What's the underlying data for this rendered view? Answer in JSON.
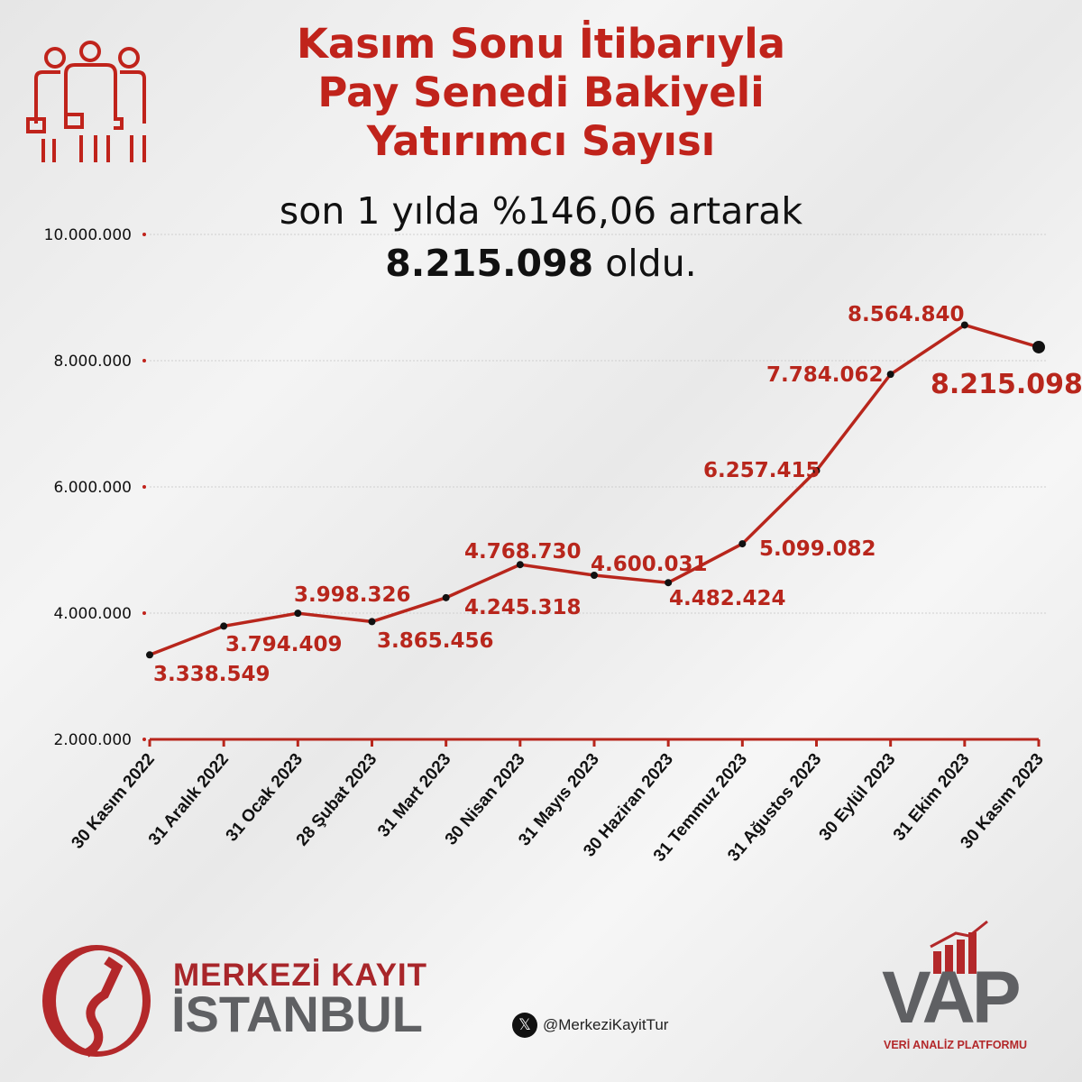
{
  "header": {
    "title_lines": [
      "Kasım Sonu İtibarıyla",
      "Pay Senedi Bakiyeli",
      "Yatırımcı Sayısı"
    ],
    "subtitle_line1": "son 1 yılda %146,06 artarak",
    "subtitle_value": "8.215.098",
    "subtitle_suffix": "oldu."
  },
  "icon": "people-group-icon",
  "colors": {
    "accent": "#c0231b",
    "line": "#b8261c",
    "text": "#111111",
    "logo_gray": "#5f6063"
  },
  "chart_data": {
    "type": "line",
    "title": "Kasım Sonu İtibarıyla Pay Senedi Bakiyeli Yatırımcı Sayısı",
    "categories": [
      "30 Kasım 2022",
      "31 Aralık 2022",
      "31 Ocak 2023",
      "28 Şubat 2023",
      "31 Mart 2023",
      "30 Nisan 2023",
      "31 Mayıs 2023",
      "30 Haziran 2023",
      "31 Temmuz 2023",
      "31 Ağustos 2023",
      "30 Eylül 2023",
      "31 Ekim 2023",
      "30 Kasım 2023"
    ],
    "values": [
      3338549,
      3794409,
      3998326,
      3865456,
      4245318,
      4768730,
      4600031,
      4482424,
      5099082,
      6257415,
      7784062,
      8564840,
      8215098
    ],
    "data_labels": [
      "3.338.549",
      "3.794.409",
      "3.998.326",
      "3.865.456",
      "4.245.318",
      "4.768.730",
      "4.600.031",
      "4.482.424",
      "5.099.082",
      "6.257.415",
      "7.784.062",
      "8.564.840",
      "8.215.098"
    ],
    "yticks": [
      "2.000.000",
      "4.000.000",
      "6.000.000",
      "8.000.000",
      "10.000.000"
    ],
    "ytick_values": [
      2000000,
      4000000,
      6000000,
      8000000,
      10000000
    ],
    "ylim": [
      2000000,
      10000000
    ],
    "grid": true,
    "legend": "none"
  },
  "footer": {
    "mkk_logo_line1": "MERKEZİ KAYIT",
    "mkk_logo_line2": "İSTANBUL",
    "social_icon": "x-logo-icon",
    "social_handle": "@MerkeziKayitTur",
    "vap_logo": "VAP",
    "vap_tagline": "VERİ ANALİZ PLATFORMU"
  }
}
